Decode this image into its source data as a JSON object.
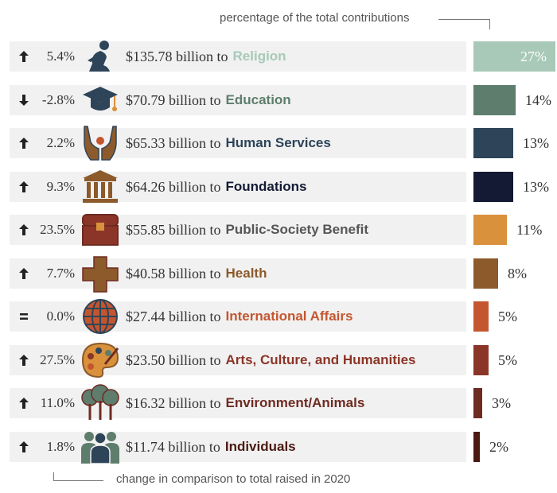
{
  "notes": {
    "top": "percentage of the total contributions",
    "bottom": "change in comparison to total raised in 2020"
  },
  "chart_data": {
    "type": "bar",
    "categories": [
      "Religion",
      "Education",
      "Human Services",
      "Foundations",
      "Public-Society Benefit",
      "Health",
      "International Affairs",
      "Arts, Culture, and Humanities",
      "Environment/Animals",
      "Individuals"
    ],
    "amount_labels": [
      "$135.78 billion to",
      "$70.79 billion to",
      "$65.33 billion to",
      "$64.26 billion to",
      "$55.85 billion to",
      "$40.58 billion to",
      "$27.44 billion to",
      "$23.50 billion to",
      "$16.32 billion to",
      "$11.74 billion to"
    ],
    "amounts_billion": [
      135.78,
      70.79,
      65.33,
      64.26,
      55.85,
      40.58,
      27.44,
      23.5,
      16.32,
      11.74
    ],
    "change_labels": [
      "5.4%",
      "-2.8%",
      "2.2%",
      "9.3%",
      "23.5%",
      "7.7%",
      "0.0%",
      "27.5%",
      "11.0%",
      "1.8%"
    ],
    "change_direction": [
      "up",
      "down",
      "up",
      "up",
      "up",
      "up",
      "equal",
      "up",
      "up",
      "up"
    ],
    "percent_values": [
      27,
      14,
      13,
      13,
      11,
      8,
      5,
      5,
      3,
      2
    ],
    "percent_labels": [
      "27%",
      "14%",
      "13%",
      "13%",
      "11%",
      "8%",
      "5%",
      "5%",
      "3%",
      "2%"
    ],
    "colors": [
      "#a8c9b8",
      "#5e7d6d",
      "#2e4459",
      "#141a33",
      "#d9913c",
      "#8c5a2b",
      "#c4562f",
      "#8b3528",
      "#6e2b22",
      "#4a1a12"
    ],
    "category_colors": [
      "#a8c9b8",
      "#5e7d6d",
      "#2e4459",
      "#141a33",
      "#555555",
      "#8c5a2b",
      "#c4562f",
      "#8b3528",
      "#6e2b22",
      "#4a1a12"
    ],
    "icons": [
      "praying-figure-icon",
      "graduation-cap-icon",
      "hands-icon",
      "columns-building-icon",
      "treasure-chest-icon",
      "medical-cross-icon",
      "globe-icon",
      "palette-icon",
      "trees-icon",
      "people-group-icon"
    ]
  }
}
